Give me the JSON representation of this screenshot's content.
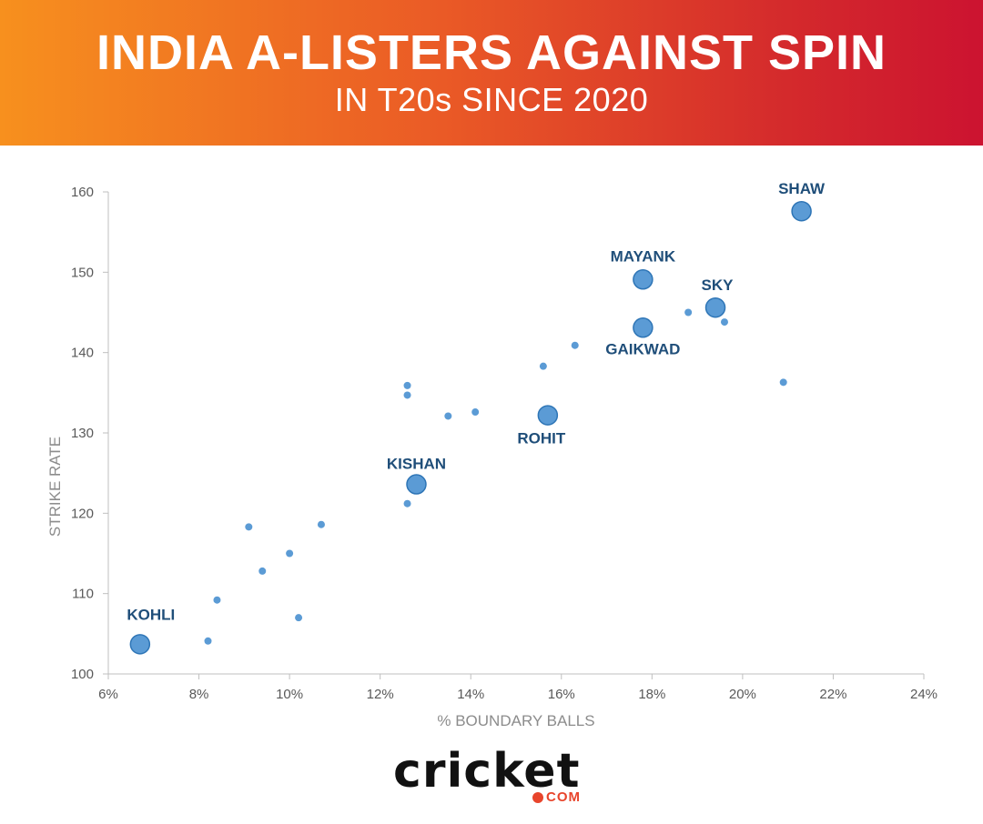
{
  "header": {
    "title": "INDIA A-LISTERS AGAINST SPIN",
    "subtitle": "IN T20s SINCE 2020"
  },
  "logo": {
    "wordmark": "cricket",
    "suffix": "COM",
    "accent": "#e8452c"
  },
  "colors": {
    "banner_start": "#f7901e",
    "banner_end": "#cc1330",
    "marker": "#5b9bd5",
    "marker_stroke": "#2e75b6",
    "label": "#1f4e79"
  },
  "chart_data": {
    "type": "scatter",
    "title": "INDIA A-LISTERS AGAINST SPIN",
    "subtitle": "IN T20s SINCE 2020",
    "xlabel": "% BOUNDARY BALLS",
    "ylabel": "STRIKE RATE",
    "xlim": [
      6,
      24
    ],
    "ylim": [
      100,
      160
    ],
    "xticks": [
      6,
      8,
      10,
      12,
      14,
      16,
      18,
      20,
      22,
      24
    ],
    "xtick_labels": [
      "6%",
      "8%",
      "10%",
      "12%",
      "14%",
      "16%",
      "18%",
      "20%",
      "22%",
      "24%"
    ],
    "yticks": [
      100,
      110,
      120,
      130,
      140,
      150,
      160
    ],
    "ytick_labels": [
      "100",
      "110",
      "120",
      "130",
      "140",
      "150",
      "160"
    ],
    "grid": false,
    "highlighted": [
      {
        "name": "SHAW",
        "x": 21.3,
        "y": 157.6
      },
      {
        "name": "MAYANK",
        "x": 17.8,
        "y": 149.1
      },
      {
        "name": "SKY",
        "x": 19.4,
        "y": 145.6
      },
      {
        "name": "GAIKWAD",
        "x": 17.8,
        "y": 143.1
      },
      {
        "name": "ROHIT",
        "x": 15.7,
        "y": 132.2
      },
      {
        "name": "KISHAN",
        "x": 12.8,
        "y": 123.6
      },
      {
        "name": "KOHLI",
        "x": 6.7,
        "y": 103.7
      }
    ],
    "others": [
      {
        "x": 18.8,
        "y": 145.0
      },
      {
        "x": 19.6,
        "y": 143.8
      },
      {
        "x": 16.3,
        "y": 140.9
      },
      {
        "x": 15.6,
        "y": 138.3
      },
      {
        "x": 20.9,
        "y": 136.3
      },
      {
        "x": 12.6,
        "y": 135.9
      },
      {
        "x": 12.6,
        "y": 134.7
      },
      {
        "x": 14.1,
        "y": 132.6
      },
      {
        "x": 13.5,
        "y": 132.1
      },
      {
        "x": 12.6,
        "y": 121.2
      },
      {
        "x": 10.7,
        "y": 118.6
      },
      {
        "x": 9.1,
        "y": 118.3
      },
      {
        "x": 10.0,
        "y": 115.0
      },
      {
        "x": 9.4,
        "y": 112.8
      },
      {
        "x": 8.4,
        "y": 109.2
      },
      {
        "x": 10.2,
        "y": 107.0
      },
      {
        "x": 8.2,
        "y": 104.1
      }
    ]
  }
}
